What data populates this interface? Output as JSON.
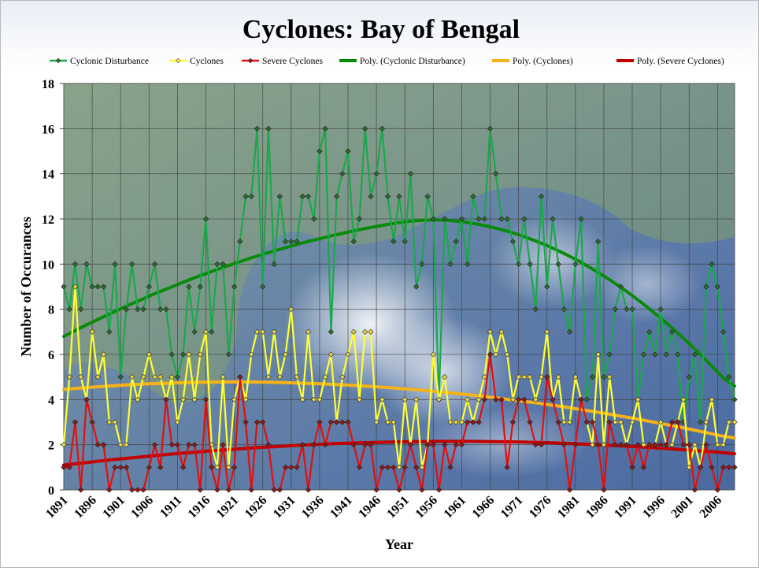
{
  "chart_data": {
    "type": "line",
    "title": "Cyclones:  Bay of Bengal",
    "xlabel": "Year",
    "ylabel": "Number of Occurances",
    "ylim": [
      0,
      18
    ],
    "yticks": [
      0,
      2,
      4,
      6,
      8,
      10,
      12,
      14,
      16,
      18
    ],
    "xlim": [
      1891,
      2009
    ],
    "xticks": [
      "1891",
      "1896",
      "1901",
      "1906",
      "1911",
      "1916",
      "1921",
      "1926",
      "1931",
      "1936",
      "1941",
      "1946",
      "1951",
      "1956",
      "1961",
      "1966",
      "1971",
      "1976",
      "1981",
      "1986",
      "1991",
      "1996",
      "2001",
      "2006"
    ],
    "grid": true,
    "background_image": "satellite-view-bay-of-bengal",
    "legend": {
      "position": "top",
      "entries": [
        {
          "label": "Cyclonic Disturbance",
          "color": "#1aa84a",
          "style": "line-marker"
        },
        {
          "label": "Cyclones",
          "color": "#ffff33",
          "style": "line-marker"
        },
        {
          "label": "Severe Cyclones",
          "color": "#e01010",
          "style": "line-marker"
        },
        {
          "label": "Poly. (Cyclonic Disturbance)",
          "color": "#0a8a0a",
          "style": "trend"
        },
        {
          "label": "Poly. (Cyclones)",
          "color": "#f5b21a",
          "style": "trend"
        },
        {
          "label": "Poly. (Severe Cyclones)",
          "color": "#c00000",
          "style": "trend"
        }
      ]
    },
    "x": [
      1891,
      1892,
      1893,
      1894,
      1895,
      1896,
      1897,
      1898,
      1899,
      1900,
      1901,
      1902,
      1903,
      1904,
      1905,
      1906,
      1907,
      1908,
      1909,
      1910,
      1911,
      1912,
      1913,
      1914,
      1915,
      1916,
      1917,
      1918,
      1919,
      1920,
      1921,
      1922,
      1923,
      1924,
      1925,
      1926,
      1927,
      1928,
      1929,
      1930,
      1931,
      1932,
      1933,
      1934,
      1935,
      1936,
      1937,
      1938,
      1939,
      1940,
      1941,
      1942,
      1943,
      1944,
      1945,
      1946,
      1947,
      1948,
      1949,
      1950,
      1951,
      1952,
      1953,
      1954,
      1955,
      1956,
      1957,
      1958,
      1959,
      1960,
      1961,
      1962,
      1963,
      1964,
      1965,
      1966,
      1967,
      1968,
      1969,
      1970,
      1971,
      1972,
      1973,
      1974,
      1975,
      1976,
      1977,
      1978,
      1979,
      1980,
      1981,
      1982,
      1983,
      1984,
      1985,
      1986,
      1987,
      1988,
      1989,
      1990,
      1991,
      1992,
      1993,
      1994,
      1995,
      1996,
      1997,
      1998,
      1999,
      2000,
      2001,
      2002,
      2003,
      2004,
      2005,
      2006,
      2007,
      2008,
      2009
    ],
    "series": [
      {
        "name": "Cyclonic Disturbance",
        "color": "#1aa84a",
        "marker_fill": "#2e6b2e",
        "values": [
          9,
          8,
          10,
          8,
          10,
          9,
          9,
          9,
          7,
          10,
          5,
          8,
          10,
          8,
          8,
          9,
          10,
          8,
          8,
          6,
          5,
          6,
          9,
          7,
          9,
          12,
          7,
          10,
          10,
          6,
          9,
          11,
          13,
          13,
          16,
          9,
          16,
          10,
          13,
          11,
          11,
          11,
          13,
          13,
          12,
          15,
          16,
          7,
          13,
          14,
          15,
          11,
          12,
          16,
          13,
          14,
          16,
          13,
          11,
          13,
          11,
          14,
          9,
          10,
          13,
          12,
          4,
          12,
          10,
          11,
          12,
          10,
          13,
          12,
          12,
          16,
          14,
          12,
          12,
          11,
          10,
          12,
          10,
          8,
          13,
          9,
          12,
          10,
          8,
          7,
          10,
          12,
          4,
          5,
          11,
          5,
          6,
          8,
          9,
          8,
          8,
          4,
          6,
          7,
          6,
          8,
          6,
          7,
          6,
          3,
          5,
          6,
          3,
          9,
          10,
          9,
          7,
          5,
          4
        ],
        "trend": [
          6.8,
          7.05,
          7.3,
          7.54,
          7.77,
          8.0,
          8.23,
          8.44,
          8.66,
          8.86,
          9.06,
          9.26,
          9.45,
          9.63,
          9.81,
          9.98,
          10.15,
          10.31,
          10.46,
          10.61,
          10.75,
          10.89,
          11.02,
          11.14,
          11.26,
          11.37,
          11.48,
          11.58,
          11.67,
          11.76,
          11.84,
          11.9,
          11.94,
          11.96,
          11.95,
          11.91,
          11.85,
          11.77,
          11.67,
          11.55,
          11.41,
          11.25,
          11.07,
          10.87,
          10.65,
          10.41,
          10.15,
          9.87,
          9.57,
          9.25,
          8.91,
          8.55,
          8.17,
          7.77,
          7.35,
          6.91,
          6.45,
          5.97,
          5.47,
          4.95,
          4.6
        ]
      },
      {
        "name": "Cyclones",
        "color": "#ffff33",
        "marker_fill": "#e8d84a",
        "values": [
          2,
          5,
          9,
          5,
          4,
          7,
          5,
          6,
          3,
          3,
          2,
          2,
          5,
          4,
          5,
          6,
          5,
          5,
          4,
          5,
          3,
          4,
          6,
          4,
          6,
          7,
          2,
          1,
          5,
          1,
          4,
          5,
          4,
          6,
          7,
          7,
          5,
          7,
          5,
          6,
          8,
          5,
          4,
          7,
          4,
          4,
          5,
          6,
          3,
          5,
          6,
          7,
          4,
          7,
          7,
          3,
          4,
          3,
          3,
          1,
          4,
          2,
          4,
          1,
          2,
          6,
          4,
          5,
          3,
          3,
          3,
          4,
          3,
          4,
          5,
          7,
          6,
          7,
          6,
          4,
          5,
          5,
          5,
          4,
          5,
          7,
          4,
          5,
          3,
          3,
          5,
          4,
          3,
          2,
          6,
          2,
          5,
          3,
          3,
          2,
          3,
          4,
          2,
          2,
          2,
          3,
          2,
          2,
          3,
          4,
          1,
          2,
          1,
          3,
          4,
          2,
          2,
          3,
          3
        ],
        "trend": [
          4.45,
          4.5,
          4.55,
          4.59,
          4.63,
          4.67,
          4.7,
          4.72,
          4.74,
          4.76,
          4.77,
          4.78,
          4.78,
          4.78,
          4.77,
          4.76,
          4.74,
          4.72,
          4.7,
          4.67,
          4.64,
          4.6,
          4.56,
          4.52,
          4.47,
          4.42,
          4.36,
          4.3,
          4.24,
          4.17,
          4.1,
          4.02,
          3.94,
          3.86,
          3.77,
          3.68,
          3.58,
          3.48,
          3.38,
          3.27,
          3.16,
          3.04,
          2.92,
          2.8,
          2.67,
          2.54,
          2.4,
          2.3
        ]
      },
      {
        "name": "Severe Cyclones",
        "color": "#e01010",
        "marker_fill": "#8b1a1a",
        "values": [
          1,
          1,
          3,
          0,
          4,
          3,
          2,
          2,
          0,
          1,
          1,
          1,
          0,
          0,
          0,
          1,
          2,
          1,
          4,
          2,
          2,
          1,
          2,
          2,
          0,
          4,
          1,
          0,
          2,
          0,
          1,
          5,
          3,
          0,
          3,
          3,
          2,
          0,
          0,
          1,
          1,
          1,
          2,
          0,
          2,
          3,
          2,
          3,
          3,
          3,
          3,
          2,
          1,
          2,
          2,
          0,
          1,
          1,
          1,
          0,
          1,
          2,
          1,
          0,
          2,
          2,
          0,
          2,
          1,
          2,
          2,
          3,
          3,
          3,
          4,
          6,
          4,
          4,
          1,
          3,
          4,
          4,
          3,
          2,
          2,
          5,
          4,
          3,
          2,
          0,
          2,
          4,
          3,
          3,
          2,
          0,
          3,
          2,
          2,
          2,
          1,
          2,
          1,
          2,
          2,
          2,
          2,
          3,
          3,
          2,
          2,
          0,
          1,
          2,
          1,
          0,
          1,
          1,
          1
        ],
        "trend": [
          1.1,
          1.18,
          1.26,
          1.34,
          1.41,
          1.48,
          1.55,
          1.61,
          1.67,
          1.73,
          1.78,
          1.83,
          1.88,
          1.92,
          1.96,
          2.0,
          2.03,
          2.06,
          2.08,
          2.1,
          2.12,
          2.13,
          2.14,
          2.15,
          2.15,
          2.15,
          2.14,
          2.13,
          2.12,
          2.1,
          2.08,
          2.05,
          2.02,
          1.99,
          1.95,
          1.91,
          1.87,
          1.82,
          1.77,
          1.72,
          1.67,
          1.6
        ]
      }
    ]
  }
}
